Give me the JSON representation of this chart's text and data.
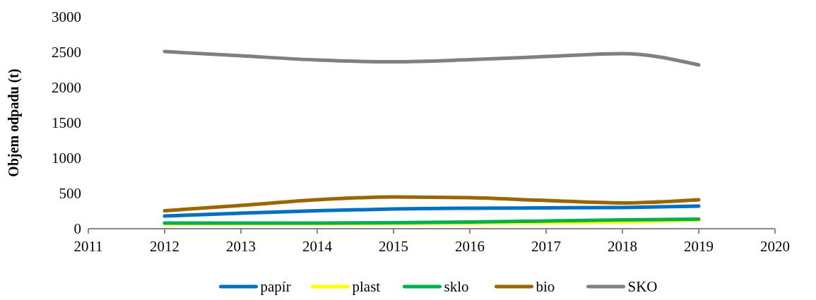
{
  "chart_data": {
    "type": "line",
    "ylabel": "Objem odpadu (t)",
    "x": [
      2012,
      2013,
      2014,
      2015,
      2016,
      2017,
      2018,
      2019
    ],
    "xlim": [
      2011,
      2020
    ],
    "xticks": [
      2011,
      2012,
      2013,
      2014,
      2015,
      2016,
      2017,
      2018,
      2019,
      2020
    ],
    "ylim": [
      0,
      3000
    ],
    "yticks": [
      0,
      500,
      1000,
      1500,
      2000,
      2500,
      3000
    ],
    "grid": false,
    "legend": "bottom",
    "marker": "none",
    "line_style": "solid",
    "series": [
      {
        "name": "papír",
        "color": "#0070c0",
        "values": [
          180,
          220,
          255,
          280,
          290,
          295,
          300,
          320
        ]
      },
      {
        "name": "plast",
        "color": "#ffff00",
        "values": [
          70,
          70,
          70,
          75,
          80,
          85,
          95,
          125
        ]
      },
      {
        "name": "sklo",
        "color": "#00b050",
        "values": [
          80,
          80,
          80,
          85,
          95,
          110,
          125,
          135
        ]
      },
      {
        "name": "bio",
        "color": "#996600",
        "values": [
          255,
          330,
          410,
          450,
          440,
          400,
          365,
          410
        ]
      },
      {
        "name": "SKO",
        "color": "#808080",
        "values": [
          2510,
          2450,
          2390,
          2365,
          2395,
          2440,
          2480,
          2320
        ]
      }
    ]
  }
}
